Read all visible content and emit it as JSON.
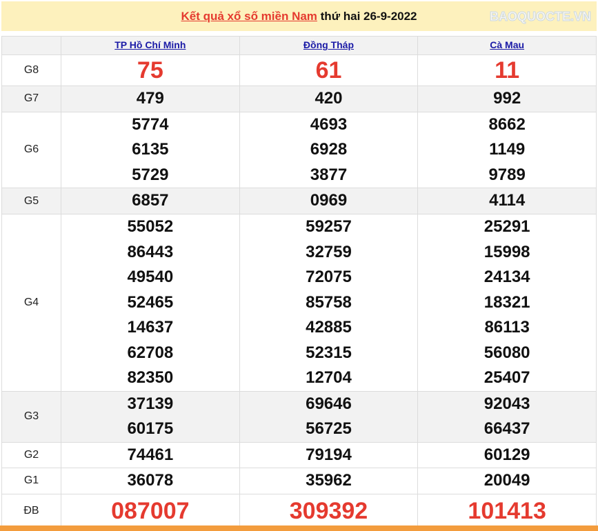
{
  "header": {
    "link": "Kết quả xổ số miền Nam",
    "suffix": " thứ hai 26-9-2022"
  },
  "provinces": [
    "TP Hồ Chí Minh",
    "Đồng Tháp",
    "Cà Mau"
  ],
  "prizes": [
    {
      "label": "G8",
      "big": true,
      "values": [
        [
          "75"
        ],
        [
          "61"
        ],
        [
          "11"
        ]
      ]
    },
    {
      "label": "G7",
      "values": [
        [
          "479"
        ],
        [
          "420"
        ],
        [
          "992"
        ]
      ]
    },
    {
      "label": "G6",
      "values": [
        [
          "5774",
          "6135",
          "5729"
        ],
        [
          "4693",
          "6928",
          "3877"
        ],
        [
          "8662",
          "1149",
          "9789"
        ]
      ]
    },
    {
      "label": "G5",
      "values": [
        [
          "6857"
        ],
        [
          "0969"
        ],
        [
          "4114"
        ]
      ]
    },
    {
      "label": "G4",
      "values": [
        [
          "55052",
          "86443",
          "49540",
          "52465",
          "14637",
          "62708",
          "82350"
        ],
        [
          "59257",
          "32759",
          "72075",
          "85758",
          "42885",
          "52315",
          "12704"
        ],
        [
          "25291",
          "15998",
          "24134",
          "18321",
          "86113",
          "56080",
          "25407"
        ]
      ]
    },
    {
      "label": "G3",
      "values": [
        [
          "37139",
          "60175"
        ],
        [
          "69646",
          "56725"
        ],
        [
          "92043",
          "66437"
        ]
      ]
    },
    {
      "label": "G2",
      "values": [
        [
          "74461"
        ],
        [
          "79194"
        ],
        [
          "60129"
        ]
      ]
    },
    {
      "label": "G1",
      "values": [
        [
          "36078"
        ],
        [
          "35962"
        ],
        [
          "20049"
        ]
      ]
    },
    {
      "label": "ĐB",
      "big": true,
      "values": [
        [
          "087007"
        ],
        [
          "309392"
        ],
        [
          "101413"
        ]
      ]
    }
  ],
  "watermark": "BAOQUOCTE.VN",
  "colors": {
    "accent": "#e53a2f",
    "header_bg": "#fdf1bd",
    "footer": "#f39c3d"
  }
}
